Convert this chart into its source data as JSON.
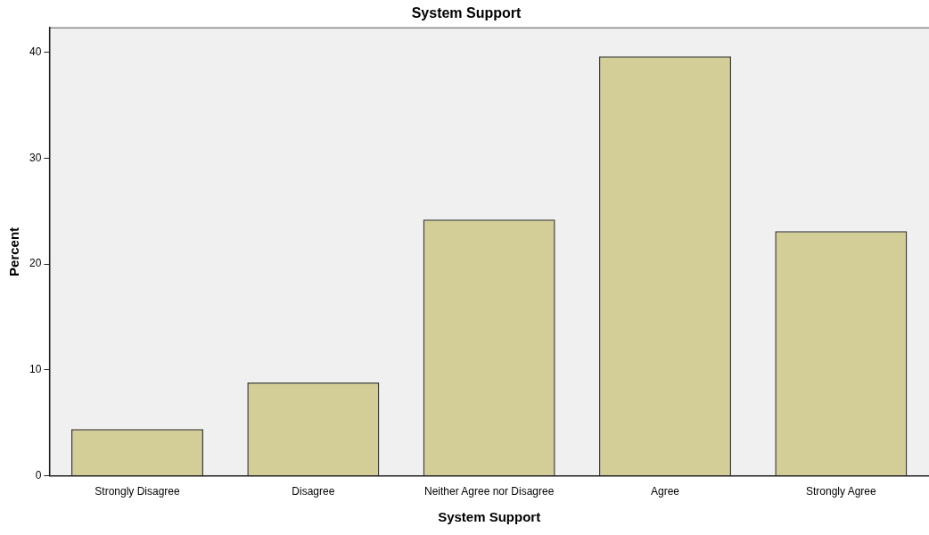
{
  "chart_data": {
    "type": "bar",
    "title": "System Support",
    "xlabel": "System Support",
    "ylabel": "Percent",
    "categories": [
      "Strongly Disagree",
      "Disagree",
      "Neither Agree nor Disagree",
      "Agree",
      "Strongly Agree"
    ],
    "values": [
      4.4,
      8.8,
      24.2,
      39.6,
      23.1
    ],
    "color": "#d3ce97",
    "ylim": [
      0,
      42.3
    ],
    "yticks": [
      0,
      10,
      20,
      30,
      40
    ],
    "grid": false,
    "legend": false
  }
}
